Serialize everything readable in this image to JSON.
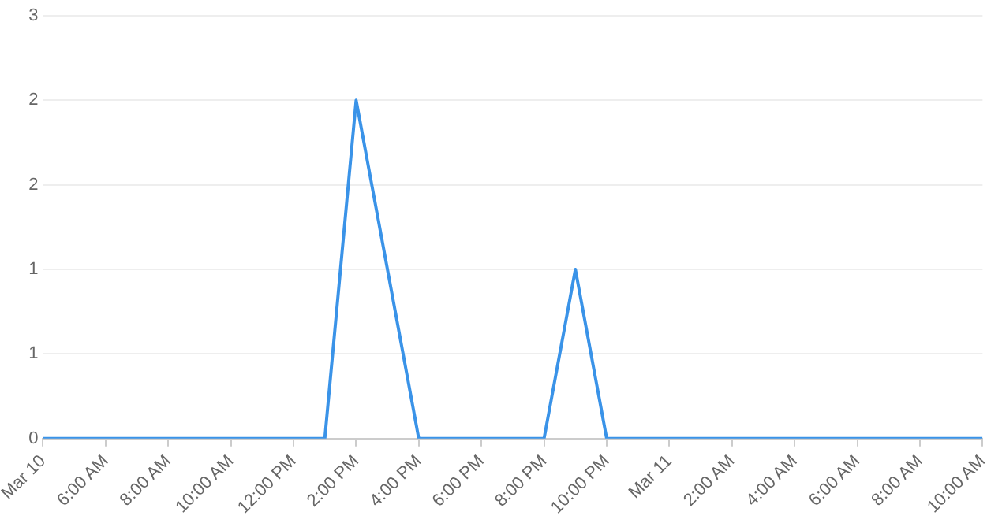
{
  "chart_data": {
    "type": "line",
    "x": [
      "--03-10T04:00",
      "--03-10T13:00",
      "--03-10T14:00",
      "--03-10T16:00",
      "--03-10T20:00",
      "--03-10T21:00",
      "--03-10T22:00",
      "--03-11T10:00"
    ],
    "series": [
      {
        "color": "#3a93e8",
        "values": [
          0,
          0,
          2,
          0,
          0,
          1,
          0,
          0
        ]
      }
    ],
    "xlim": [
      "--03-10T04:00",
      "--03-11T10:00"
    ],
    "xticks": [
      {
        "value": "--03-10T04:00",
        "label": "Mar 10"
      },
      {
        "value": "--03-10T06:00",
        "label": "6:00 AM"
      },
      {
        "value": "--03-10T08:00",
        "label": "8:00 AM"
      },
      {
        "value": "--03-10T10:00",
        "label": "10:00 AM"
      },
      {
        "value": "--03-10T12:00",
        "label": "12:00 PM"
      },
      {
        "value": "--03-10T14:00",
        "label": "2:00 PM"
      },
      {
        "value": "--03-10T16:00",
        "label": "4:00 PM"
      },
      {
        "value": "--03-10T18:00",
        "label": "6:00 PM"
      },
      {
        "value": "--03-10T20:00",
        "label": "8:00 PM"
      },
      {
        "value": "--03-10T22:00",
        "label": "10:00 PM"
      },
      {
        "value": "--03-11T00:00",
        "label": "Mar 11"
      },
      {
        "value": "--03-11T02:00",
        "label": "2:00 AM"
      },
      {
        "value": "--03-11T04:00",
        "label": "4:00 AM"
      },
      {
        "value": "--03-11T06:00",
        "label": "6:00 AM"
      },
      {
        "value": "--03-11T08:00",
        "label": "8:00 AM"
      },
      {
        "value": "--03-11T10:00",
        "label": "10:00 AM"
      }
    ],
    "ylim": [
      0,
      2.5
    ],
    "yticks": [
      0,
      {
        "value": 0.5,
        "label": "1"
      },
      1,
      {
        "value": 1.5,
        "label": "2"
      },
      2,
      {
        "value": 2.5,
        "label": "3"
      }
    ],
    "grid": "y",
    "marker": "none",
    "line_style": "solid",
    "legend": false
  }
}
